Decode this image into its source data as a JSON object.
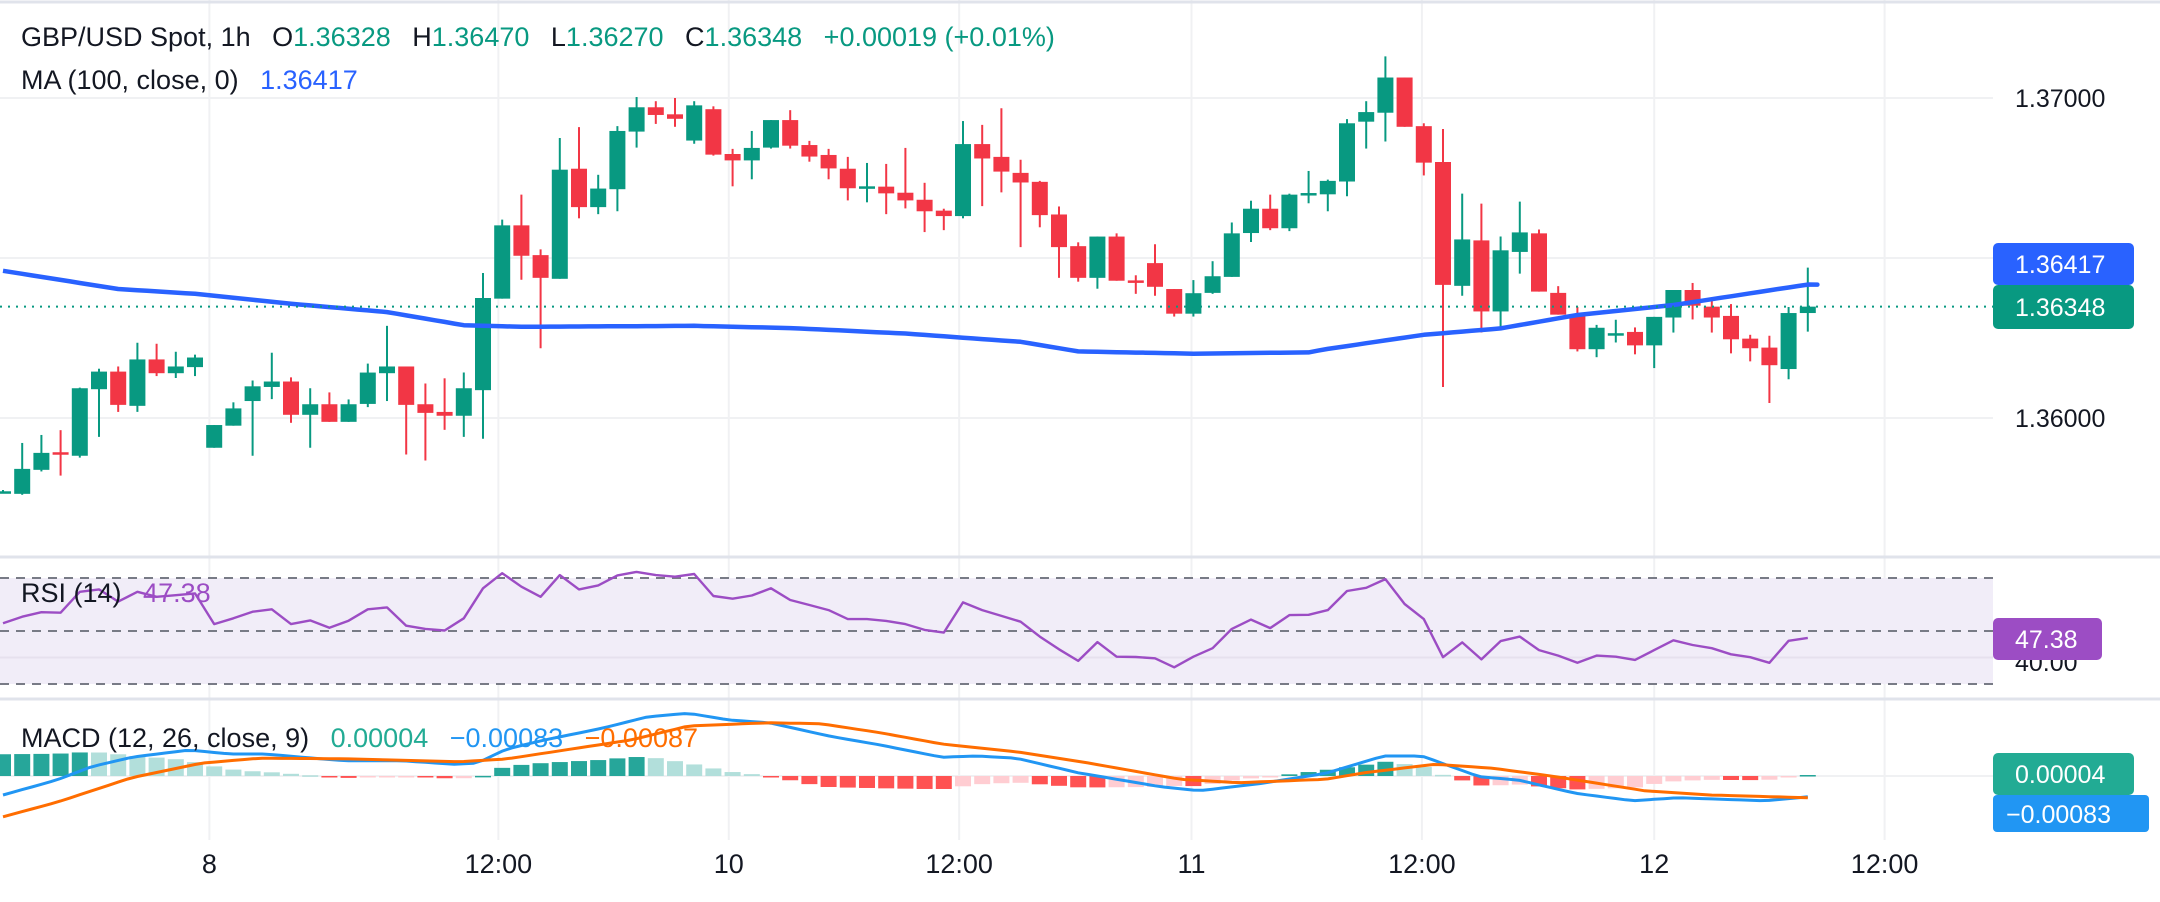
{
  "header": {
    "symbol": "GBP/USD Spot, 1h",
    "open_key": "O",
    "open": "1.36328",
    "high_key": "H",
    "high": "1.36470",
    "low_key": "L",
    "low": "1.36270",
    "close_key": "C",
    "close": "1.36348",
    "change": "+0.00019 (+0.01%)"
  },
  "ma_legend": {
    "label": "MA (100, close, 0)",
    "value": "1.36417"
  },
  "rsi_legend": {
    "label": "RSI (14)",
    "value": "47.38"
  },
  "macd_legend": {
    "label": "MACD (12, 26, close, 9)",
    "hist": "0.00004",
    "macd": "−0.00083",
    "signal": "−0.00087"
  },
  "price_axis": {
    "ticks": [
      "1.37000",
      "1.36000"
    ],
    "ma_badge": "1.36417",
    "close_badge": "1.36348"
  },
  "rsi_axis": {
    "tick": "40.00",
    "badge": "47.38"
  },
  "macd_axis": {
    "hist_badge": "0.00004",
    "macd_badge": "−0.00083"
  },
  "time_axis": {
    "labels": [
      "8",
      "12:00",
      "10",
      "12:00",
      "11",
      "12:00",
      "12",
      "12:00"
    ]
  },
  "colors": {
    "up": "#089981",
    "down": "#F23645",
    "ma": "#2962FF",
    "rsi": "#9C4DC4",
    "macd": "#2196F3",
    "signal": "#FF6D00",
    "hist_up_strong": "#26A69A",
    "hist_up_weak": "#B2DFDB",
    "hist_down_strong": "#FF5252",
    "hist_down_weak": "#FFCDD2"
  },
  "chart_data": [
    {
      "type": "candlestick",
      "title": "GBP/USD Spot, 1h",
      "interval": "1h",
      "ylim": [
        1.3551,
        1.373
      ],
      "y_ticks": [
        1.37,
        1.365,
        1.36
      ],
      "grid": true,
      "ohlc_fields": [
        "open",
        "high",
        "low",
        "close"
      ],
      "candles": [
        [
          1.35771,
          1.35775,
          1.35768,
          1.35771
        ],
        [
          1.35763,
          1.35922,
          1.3576,
          1.35841
        ],
        [
          1.35838,
          1.35947,
          1.35833,
          1.35891
        ],
        [
          1.35893,
          1.35962,
          1.3582,
          1.35889
        ],
        [
          1.35882,
          1.36095,
          1.35876,
          1.36093
        ],
        [
          1.3609,
          1.36154,
          1.35941,
          1.36145
        ],
        [
          1.36145,
          1.36161,
          1.36019,
          1.36041
        ],
        [
          1.36038,
          1.36235,
          1.36019,
          1.36183
        ],
        [
          1.36183,
          1.36232,
          1.36131,
          1.3614
        ],
        [
          1.3614,
          1.36207,
          1.36125,
          1.36161
        ],
        [
          1.36159,
          1.36198,
          1.36131,
          1.36189
        ],
        [
          1.35907,
          1.35978,
          1.35907,
          1.35978
        ],
        [
          1.35976,
          1.36049,
          1.35976,
          1.3603
        ],
        [
          1.36053,
          1.36117,
          1.35882,
          1.36099
        ],
        [
          1.36097,
          1.36204,
          1.36059,
          1.36114
        ],
        [
          1.36114,
          1.36127,
          1.35985,
          1.3601
        ],
        [
          1.3601,
          1.36093,
          1.35907,
          1.36043
        ],
        [
          1.36043,
          1.3608,
          1.35988,
          1.35988
        ],
        [
          1.35988,
          1.36058,
          1.35988,
          1.36043
        ],
        [
          1.36044,
          1.3617,
          1.36034,
          1.36142
        ],
        [
          1.3614,
          1.36288,
          1.36053,
          1.36161
        ],
        [
          1.36161,
          1.36161,
          1.35886,
          1.36041
        ],
        [
          1.36043,
          1.36108,
          1.35867,
          1.36016
        ],
        [
          1.36019,
          1.36124,
          1.35963,
          1.36007
        ],
        [
          1.36007,
          1.36142,
          1.35941,
          1.36093
        ],
        [
          1.36087,
          1.36453,
          1.35935,
          1.36375
        ],
        [
          1.36373,
          1.3662,
          1.36373,
          1.36602
        ],
        [
          1.36602,
          1.36698,
          1.36432,
          1.36507
        ],
        [
          1.36509,
          1.36527,
          1.36218,
          1.36438
        ],
        [
          1.36435,
          1.36875,
          1.36435,
          1.36776
        ],
        [
          1.36779,
          1.36909,
          1.36624,
          1.36659
        ],
        [
          1.36659,
          1.3676,
          1.36637,
          1.36717
        ],
        [
          1.36715,
          1.36912,
          1.36646,
          1.36897
        ],
        [
          1.36895,
          1.37003,
          1.36845,
          1.36971
        ],
        [
          1.36971,
          1.3699,
          1.36919,
          1.36947
        ],
        [
          1.36949,
          1.37,
          1.3691,
          1.36935
        ],
        [
          1.36867,
          1.3699,
          1.36857,
          1.36977
        ],
        [
          1.36965,
          1.36974,
          1.3682,
          1.36823
        ],
        [
          1.36825,
          1.36841,
          1.36724,
          1.36805
        ],
        [
          1.36805,
          1.36897,
          1.36746,
          1.36844
        ],
        [
          1.36845,
          1.36931,
          1.36842,
          1.36931
        ],
        [
          1.36931,
          1.36962,
          1.36842,
          1.36851
        ],
        [
          1.36853,
          1.36866,
          1.36801,
          1.36817
        ],
        [
          1.36822,
          1.36841,
          1.36746,
          1.3678
        ],
        [
          1.36779,
          1.36816,
          1.3668,
          1.36718
        ],
        [
          1.36722,
          1.36797,
          1.36674,
          1.36724
        ],
        [
          1.36723,
          1.36794,
          1.36637,
          1.36702
        ],
        [
          1.36704,
          1.36844,
          1.36655,
          1.3668
        ],
        [
          1.36682,
          1.36735,
          1.36581,
          1.36646
        ],
        [
          1.36648,
          1.36654,
          1.36587,
          1.36631
        ],
        [
          1.36631,
          1.36928,
          1.36624,
          1.36856
        ],
        [
          1.36856,
          1.36916,
          1.36662,
          1.36811
        ],
        [
          1.36816,
          1.36968,
          1.36705,
          1.3677
        ],
        [
          1.36766,
          1.36807,
          1.36534,
          1.36736
        ],
        [
          1.36738,
          1.36741,
          1.36596,
          1.36634
        ],
        [
          1.36636,
          1.36661,
          1.36438,
          1.36534
        ],
        [
          1.36537,
          1.36549,
          1.36426,
          1.36438
        ],
        [
          1.36438,
          1.36567,
          1.36404,
          1.36567
        ],
        [
          1.36567,
          1.36577,
          1.36429,
          1.36429
        ],
        [
          1.3643,
          1.36446,
          1.36388,
          1.36428
        ],
        [
          1.36484,
          1.36543,
          1.36382,
          1.3641
        ],
        [
          1.36403,
          1.36403,
          1.36317,
          1.36326
        ],
        [
          1.36326,
          1.36431,
          1.36317,
          1.3639
        ],
        [
          1.36391,
          1.3649,
          1.36388,
          1.36443
        ],
        [
          1.36441,
          1.36611,
          1.36441,
          1.36577
        ],
        [
          1.36578,
          1.36679,
          1.3655,
          1.36654
        ],
        [
          1.36654,
          1.36698,
          1.36587,
          1.36593
        ],
        [
          1.36593,
          1.36701,
          1.36584,
          1.36698
        ],
        [
          1.36701,
          1.36772,
          1.36671,
          1.36703
        ],
        [
          1.36699,
          1.36745,
          1.36646,
          1.36741
        ],
        [
          1.36739,
          1.36934,
          1.36693,
          1.36921
        ],
        [
          1.36926,
          1.3699,
          1.36842,
          1.36956
        ],
        [
          1.36954,
          1.3713,
          1.36864,
          1.37064
        ],
        [
          1.37064,
          1.37064,
          1.3691,
          1.3691
        ],
        [
          1.36912,
          1.36921,
          1.36758,
          1.36798
        ],
        [
          1.368,
          1.36903,
          1.36097,
          1.36416
        ],
        [
          1.36413,
          1.36701,
          1.36382,
          1.36558
        ],
        [
          1.36555,
          1.3667,
          1.36267,
          1.36333
        ],
        [
          1.36333,
          1.36567,
          1.36286,
          1.36524
        ],
        [
          1.36519,
          1.36676,
          1.36451,
          1.3658
        ],
        [
          1.36577,
          1.36589,
          1.36395,
          1.36395
        ],
        [
          1.36391,
          1.36412,
          1.36323,
          1.36323
        ],
        [
          1.36325,
          1.36347,
          1.36208,
          1.36215
        ],
        [
          1.36215,
          1.36291,
          1.3619,
          1.36282
        ],
        [
          1.36263,
          1.36307,
          1.36236,
          1.36265
        ],
        [
          1.36269,
          1.36283,
          1.36199,
          1.36227
        ],
        [
          1.36227,
          1.36316,
          1.36156,
          1.36316
        ],
        [
          1.36314,
          1.364,
          1.36267,
          1.364
        ],
        [
          1.364,
          1.36422,
          1.36308,
          1.36351
        ],
        [
          1.36348,
          1.36372,
          1.36267,
          1.36314
        ],
        [
          1.36319,
          1.36356,
          1.36202,
          1.36246
        ],
        [
          1.36248,
          1.3626,
          1.36177,
          1.36218
        ],
        [
          1.3622,
          1.36257,
          1.36047,
          1.36165
        ],
        [
          1.36153,
          1.36347,
          1.36121,
          1.36328
        ],
        [
          1.36328,
          1.3647,
          1.3627,
          1.36348
        ]
      ],
      "moving_average": {
        "name": "MA (100, close, 0)",
        "points_candle_index_value": [
          [
            0,
            1.3646
          ],
          [
            6,
            1.36403
          ],
          [
            10,
            1.36388
          ],
          [
            15,
            1.36357
          ],
          [
            20,
            1.36331
          ],
          [
            24,
            1.3629
          ],
          [
            27,
            1.36285
          ],
          [
            36,
            1.36288
          ],
          [
            41,
            1.36281
          ],
          [
            47,
            1.36264
          ],
          [
            53,
            1.36238
          ],
          [
            56,
            1.36208
          ],
          [
            62,
            1.36201
          ],
          [
            68,
            1.36205
          ],
          [
            69,
            1.36216
          ],
          [
            74,
            1.3626
          ],
          [
            78,
            1.3628
          ],
          [
            82,
            1.36322
          ],
          [
            87,
            1.36353
          ],
          [
            94,
            1.36417
          ]
        ]
      },
      "last_close": 1.36348
    },
    {
      "type": "line",
      "title": "RSI (14)",
      "ylim": [
        25,
        80
      ],
      "bands": {
        "upper": 70,
        "middle": 50,
        "lower": 30
      },
      "values": [
        52.9,
        55.4,
        57.1,
        56.9,
        64.8,
        65.7,
        61.1,
        64.8,
        62.9,
        63.5,
        64.2,
        52.6,
        54.8,
        57.3,
        58.2,
        52.6,
        54.0,
        51.2,
        53.9,
        58.2,
        58.9,
        52.0,
        50.8,
        50.2,
        54.8,
        66.1,
        71.8,
        66.7,
        62.9,
        71.1,
        65.7,
        67.2,
        71.0,
        72.3,
        71.1,
        70.5,
        71.5,
        63.2,
        62.2,
        63.4,
        66.1,
        61.7,
        59.8,
        57.9,
        54.5,
        54.5,
        53.8,
        52.6,
        50.4,
        49.4,
        60.8,
        57.9,
        55.7,
        53.5,
        47.9,
        43.1,
        38.7,
        45.8,
        40.3,
        40.2,
        39.7,
        36.3,
        40.3,
        43.5,
        50.8,
        54.3,
        51.1,
        56.0,
        56.1,
        57.9,
        65.1,
        66.3,
        69.6,
        60.2,
        54.5,
        40.1,
        45.7,
        39.3,
        46.2,
        47.9,
        42.8,
        40.7,
        38.0,
        40.7,
        40.3,
        39.1,
        42.8,
        46.5,
        44.7,
        43.5,
        41.2,
        40.1,
        38.0,
        46.3,
        47.38
      ]
    },
    {
      "type": "macd",
      "title": "MACD (12, 26, close, 9)",
      "macd_points_candle_index_value": [
        [
          0,
          -0.00076
        ],
        [
          2.8,
          -0.00016
        ],
        [
          4.6,
          0.00037
        ],
        [
          6.7,
          0.00075
        ],
        [
          9.7,
          0.00104
        ],
        [
          11.8,
          0.00088
        ],
        [
          13.6,
          0.00088
        ],
        [
          17.8,
          0.00061
        ],
        [
          20.8,
          0.00061
        ],
        [
          23.5,
          0.00047
        ],
        [
          24.7,
          0.00052
        ],
        [
          26.2,
          0.00107
        ],
        [
          28.2,
          0.00144
        ],
        [
          31.2,
          0.00191
        ],
        [
          33.6,
          0.00237
        ],
        [
          35.7,
          0.00251
        ],
        [
          37.8,
          0.00224
        ],
        [
          39.9,
          0.00213
        ],
        [
          43.2,
          0.00157
        ],
        [
          45.7,
          0.00124
        ],
        [
          48.9,
          0.00075
        ],
        [
          50.7,
          0.0008
        ],
        [
          52.8,
          0.00071
        ],
        [
          56,
          0.00013
        ],
        [
          60.3,
          -0.00043
        ],
        [
          62.3,
          -0.00059
        ],
        [
          65.6,
          -0.00029
        ],
        [
          68.9,
          0.00011
        ],
        [
          71.9,
          0.0008
        ],
        [
          73.9,
          0.0008
        ],
        [
          76.9,
          -3e-05
        ],
        [
          78.9,
          -0.00016
        ],
        [
          81.9,
          -0.00069
        ],
        [
          84.9,
          -0.00099
        ],
        [
          87.2,
          -0.00087
        ],
        [
          91.8,
          -0.00099
        ],
        [
          94,
          -0.00083
        ]
      ],
      "signal_points_candle_index_value": [
        [
          0,
          -0.00163
        ],
        [
          2.8,
          -0.00105
        ],
        [
          6.7,
          -7e-05
        ],
        [
          10.3,
          0.00051
        ],
        [
          13.3,
          0.00071
        ],
        [
          17.8,
          0.00069
        ],
        [
          23.8,
          0.00057
        ],
        [
          26.2,
          0.00068
        ],
        [
          29.7,
          0.00109
        ],
        [
          32.7,
          0.00144
        ],
        [
          35.7,
          0.002
        ],
        [
          39.9,
          0.00213
        ],
        [
          42.6,
          0.00209
        ],
        [
          45.7,
          0.00173
        ],
        [
          48.9,
          0.00128
        ],
        [
          52.8,
          0.00097
        ],
        [
          56.6,
          0.00051
        ],
        [
          61.3,
          -0.00013
        ],
        [
          64.3,
          -0.00027
        ],
        [
          68.9,
          -0.00013
        ],
        [
          70.9,
          0.00013
        ],
        [
          74.6,
          0.00047
        ],
        [
          77.6,
          0.00031
        ],
        [
          80.9,
          -3e-05
        ],
        [
          85.5,
          -0.00059
        ],
        [
          88.9,
          -0.00076
        ],
        [
          94,
          -0.00087
        ]
      ],
      "histogram": "macd minus signal",
      "last": {
        "histogram": 4e-05,
        "macd": -0.00083,
        "signal": -0.00087
      }
    }
  ]
}
